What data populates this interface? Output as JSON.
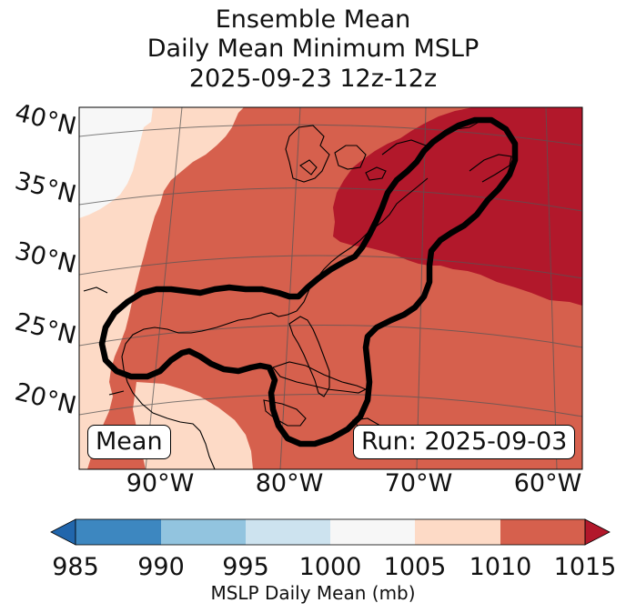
{
  "title": {
    "line1": "Ensemble Mean",
    "line2": "Daily Mean Minimum MSLP",
    "line3": "2025-09-23 12z-12z"
  },
  "map": {
    "lat_labels": [
      "40°N",
      "35°N",
      "30°N",
      "25°N",
      "20°N"
    ],
    "lon_labels": [
      "90°W",
      "80°W",
      "70°W",
      "60°W"
    ],
    "mean_box": "Mean",
    "run_box": "Run: 2025-09-03",
    "colors": {
      "c985": "#3d87c0",
      "c990": "#92c4df",
      "c995": "#cde3ef",
      "c1000": "#f7f7f7",
      "c1005": "#fddac6",
      "c1010": "#d6604d",
      "c1015": "#b2182b",
      "under": "#2166ac",
      "over": "#b2182b"
    }
  },
  "colorbar": {
    "ticks": [
      "985",
      "990",
      "995",
      "1000",
      "1005",
      "1010",
      "1015"
    ],
    "label": "MSLP Daily Mean (mb)"
  }
}
